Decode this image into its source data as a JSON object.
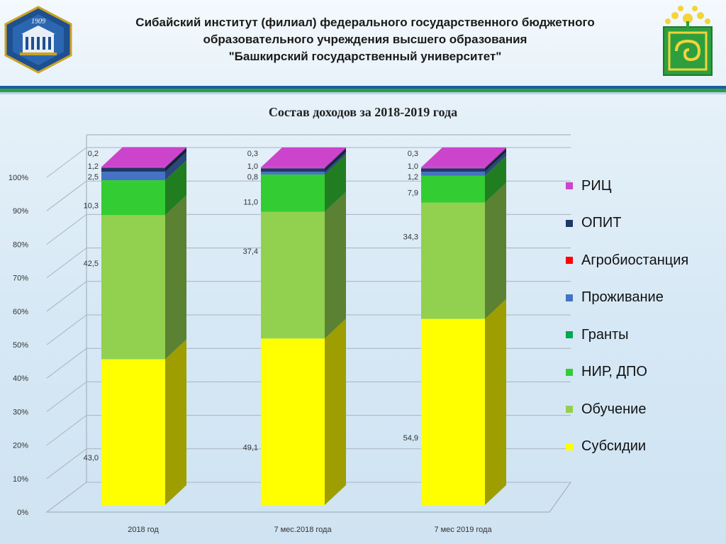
{
  "header": {
    "title_line1": "Сибайский институт (филиал) федерального государственного бюджетного",
    "title_line2": "образовательного учреждения высшего образования",
    "title_line3": "\"Башкирский государственный университет\"",
    "logo_left_year": "1909"
  },
  "colors": {
    "subsidies": "#ffff00",
    "education": "#92d050",
    "research": "#33cc33",
    "grants": "#00a651",
    "housing": "#4472c4",
    "agro": "#ff0000",
    "opit": "#1f3864",
    "ric": "#cc44cc"
  },
  "chart_data": {
    "type": "bar",
    "stacked": true,
    "three_d": true,
    "title": "Состав доходов за 2018-2019 года",
    "categories": [
      "2018 год",
      "7 мес.2018 года",
      "7 мес 2019 года"
    ],
    "y_ticks": [
      "0%",
      "10%",
      "20%",
      "30%",
      "40%",
      "50%",
      "60%",
      "70%",
      "80%",
      "90%",
      "100%"
    ],
    "ylim": [
      0,
      100
    ],
    "legend_position": "right",
    "series": [
      {
        "name": "Субсидии",
        "key": "subsidies",
        "values": [
          43.0,
          49.1,
          54.9
        ],
        "labels": [
          "43,0",
          "49,1",
          "54,9"
        ]
      },
      {
        "name": "Обучение",
        "key": "education",
        "values": [
          42.5,
          37.4,
          34.3
        ],
        "labels": [
          "42,5",
          "37,4",
          "34,3"
        ]
      },
      {
        "name": "НИР, ДПО",
        "key": "research",
        "values": [
          10.3,
          11.0,
          7.9
        ],
        "labels": [
          "10,3",
          "11,0",
          "7,9"
        ]
      },
      {
        "name": "Гранты",
        "key": "grants",
        "values": [
          0,
          0,
          0
        ],
        "labels": [
          "",
          "",
          ""
        ]
      },
      {
        "name": "Проживание",
        "key": "housing",
        "values": [
          2.5,
          0.8,
          1.2
        ],
        "labels": [
          "2,5",
          "0,8",
          "1,2"
        ]
      },
      {
        "name": "Агробиостанция",
        "key": "agro",
        "values": [
          0,
          0,
          0
        ],
        "labels": [
          "",
          "",
          ""
        ]
      },
      {
        "name": "ОПИТ",
        "key": "opit",
        "values": [
          1.2,
          1.0,
          1.0
        ],
        "labels": [
          "1,2",
          "1,0",
          "1,0"
        ]
      },
      {
        "name": "РИЦ",
        "key": "ric",
        "values": [
          0.2,
          0.3,
          0.3
        ],
        "labels": [
          "0,2",
          "0,3",
          "0,3"
        ]
      }
    ],
    "legend_order": [
      "РИЦ",
      "ОПИТ",
      "Агробиостанция",
      "Проживание",
      "Гранты",
      "НИР, ДПО",
      "Обучение",
      "Субсидии"
    ]
  }
}
